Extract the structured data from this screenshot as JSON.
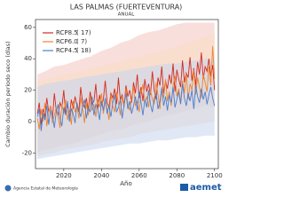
{
  "chart_data": {
    "type": "line",
    "title": "LAS PALMAS (FUERTEVENTURA)",
    "subtitle": "ANUAL",
    "y_label": "Cambio duración periodo seco (días)",
    "x_label": "Año",
    "source": "Agencia Estatal de Meteorología",
    "logo_text": "aemet",
    "xlim": [
      2005,
      2102
    ],
    "xticks": [
      2020,
      2040,
      2060,
      2080,
      2100
    ],
    "ylim": [
      -30,
      65
    ],
    "yticks": [
      -20,
      0,
      20,
      40,
      60
    ],
    "x": [
      2006,
      2007,
      2008,
      2009,
      2010,
      2011,
      2012,
      2013,
      2014,
      2015,
      2016,
      2017,
      2018,
      2019,
      2020,
      2021,
      2022,
      2023,
      2024,
      2025,
      2026,
      2027,
      2028,
      2029,
      2030,
      2031,
      2032,
      2033,
      2034,
      2035,
      2036,
      2037,
      2038,
      2039,
      2040,
      2041,
      2042,
      2043,
      2044,
      2045,
      2046,
      2047,
      2048,
      2049,
      2050,
      2051,
      2052,
      2053,
      2054,
      2055,
      2056,
      2057,
      2058,
      2059,
      2060,
      2061,
      2062,
      2063,
      2064,
      2065,
      2066,
      2067,
      2068,
      2069,
      2070,
      2071,
      2072,
      2073,
      2074,
      2075,
      2076,
      2077,
      2078,
      2079,
      2080,
      2081,
      2082,
      2083,
      2084,
      2085,
      2086,
      2087,
      2088,
      2089,
      2090,
      2091,
      2092,
      2093,
      2094,
      2095,
      2096,
      2097,
      2098,
      2099,
      2100
    ],
    "band_x": [
      2006,
      2010,
      2015,
      2020,
      2025,
      2030,
      2035,
      2040,
      2045,
      2050,
      2055,
      2060,
      2065,
      2070,
      2075,
      2080,
      2085,
      2090,
      2095,
      2100
    ],
    "series": [
      {
        "name": "RCP8.5",
        "count": "( 17)",
        "color": "#d42a1e",
        "band_color": "#f3c4bf",
        "values": [
          5,
          12,
          -2,
          8,
          3,
          15,
          6,
          10,
          2,
          18,
          7,
          4,
          12,
          9,
          20,
          5,
          11,
          3,
          14,
          8,
          16,
          10,
          6,
          22,
          12,
          9,
          15,
          7,
          19,
          11,
          13,
          24,
          8,
          17,
          10,
          14,
          26,
          12,
          9,
          18,
          15,
          21,
          11,
          28,
          14,
          17,
          10,
          23,
          16,
          20,
          12,
          25,
          18,
          30,
          15,
          22,
          13,
          27,
          19,
          24,
          17,
          32,
          20,
          14,
          28,
          23,
          35,
          18,
          26,
          21,
          30,
          24,
          37,
          19,
          33,
          27,
          22,
          39,
          25,
          31,
          28,
          41,
          26,
          34,
          23,
          38,
          30,
          44,
          27,
          35,
          32,
          40,
          29,
          36,
          20
        ],
        "band_low": [
          -20,
          -18,
          -17,
          -15,
          -14,
          -12,
          -10,
          -8,
          -6,
          -5,
          -3,
          -1,
          0,
          2,
          4,
          5,
          7,
          8,
          10,
          9
        ],
        "band_high": [
          30,
          32,
          35,
          36,
          38,
          40,
          42,
          45,
          47,
          50,
          52,
          55,
          57,
          58,
          60,
          62,
          63,
          63,
          63,
          63
        ]
      },
      {
        "name": "RCP6.0",
        "count": "( 7)",
        "color": "#f0842c",
        "band_color": "#f9dcc2",
        "values": [
          2,
          -5,
          8,
          0,
          12,
          -3,
          6,
          10,
          -1,
          4,
          9,
          3,
          -4,
          11,
          5,
          14,
          1,
          7,
          -2,
          13,
          6,
          10,
          2,
          15,
          8,
          -1,
          12,
          4,
          16,
          7,
          11,
          3,
          14,
          9,
          18,
          5,
          13,
          8,
          1,
          17,
          10,
          6,
          19,
          12,
          4,
          16,
          9,
          21,
          11,
          7,
          15,
          22,
          10,
          13,
          6,
          18,
          24,
          12,
          16,
          9,
          20,
          14,
          11,
          25,
          17,
          8,
          22,
          15,
          27,
          13,
          19,
          10,
          23,
          29,
          16,
          21,
          12,
          26,
          18,
          31,
          14,
          24,
          20,
          33,
          17,
          28,
          22,
          15,
          30,
          25,
          19,
          35,
          23,
          48,
          27
        ],
        "band_low": [
          -22,
          -21,
          -20,
          -18,
          -17,
          -16,
          -15,
          -13,
          -12,
          -11,
          -10,
          -8,
          -7,
          -6,
          -5,
          -4,
          -3,
          -2,
          -1,
          0
        ],
        "band_high": [
          25,
          27,
          28,
          30,
          31,
          32,
          34,
          35,
          37,
          38,
          40,
          41,
          43,
          44,
          46,
          48,
          50,
          52,
          54,
          56
        ]
      },
      {
        "name": "RCP4.5",
        "count": "( 18)",
        "color": "#4a7fd0",
        "band_color": "#c6d6ee",
        "values": [
          3,
          8,
          -6,
          5,
          1,
          10,
          -2,
          7,
          4,
          -4,
          6,
          11,
          2,
          -3,
          9,
          4,
          13,
          0,
          8,
          5,
          -1,
          12,
          7,
          3,
          10,
          14,
          2,
          9,
          6,
          16,
          4,
          11,
          8,
          1,
          13,
          7,
          15,
          5,
          10,
          3,
          12,
          17,
          6,
          9,
          14,
          2,
          11,
          18,
          8,
          13,
          5,
          10,
          16,
          7,
          19,
          12,
          4,
          14,
          9,
          20,
          11,
          6,
          15,
          18,
          8,
          13,
          21,
          10,
          16,
          7,
          17,
          12,
          22,
          9,
          14,
          19,
          11,
          24,
          15,
          10,
          18,
          13,
          20,
          8,
          23,
          16,
          12,
          21,
          14,
          19,
          11,
          17,
          22,
          15,
          10
        ],
        "band_low": [
          -24,
          -23,
          -22,
          -21,
          -20,
          -19,
          -18,
          -17,
          -16,
          -15,
          -14,
          -14,
          -13,
          -12,
          -12,
          -11,
          -10,
          -10,
          -9,
          -9
        ],
        "band_high": [
          22,
          24,
          25,
          26,
          27,
          28,
          29,
          30,
          31,
          32,
          33,
          34,
          35,
          36,
          37,
          37,
          38,
          39,
          40,
          40
        ]
      }
    ]
  }
}
